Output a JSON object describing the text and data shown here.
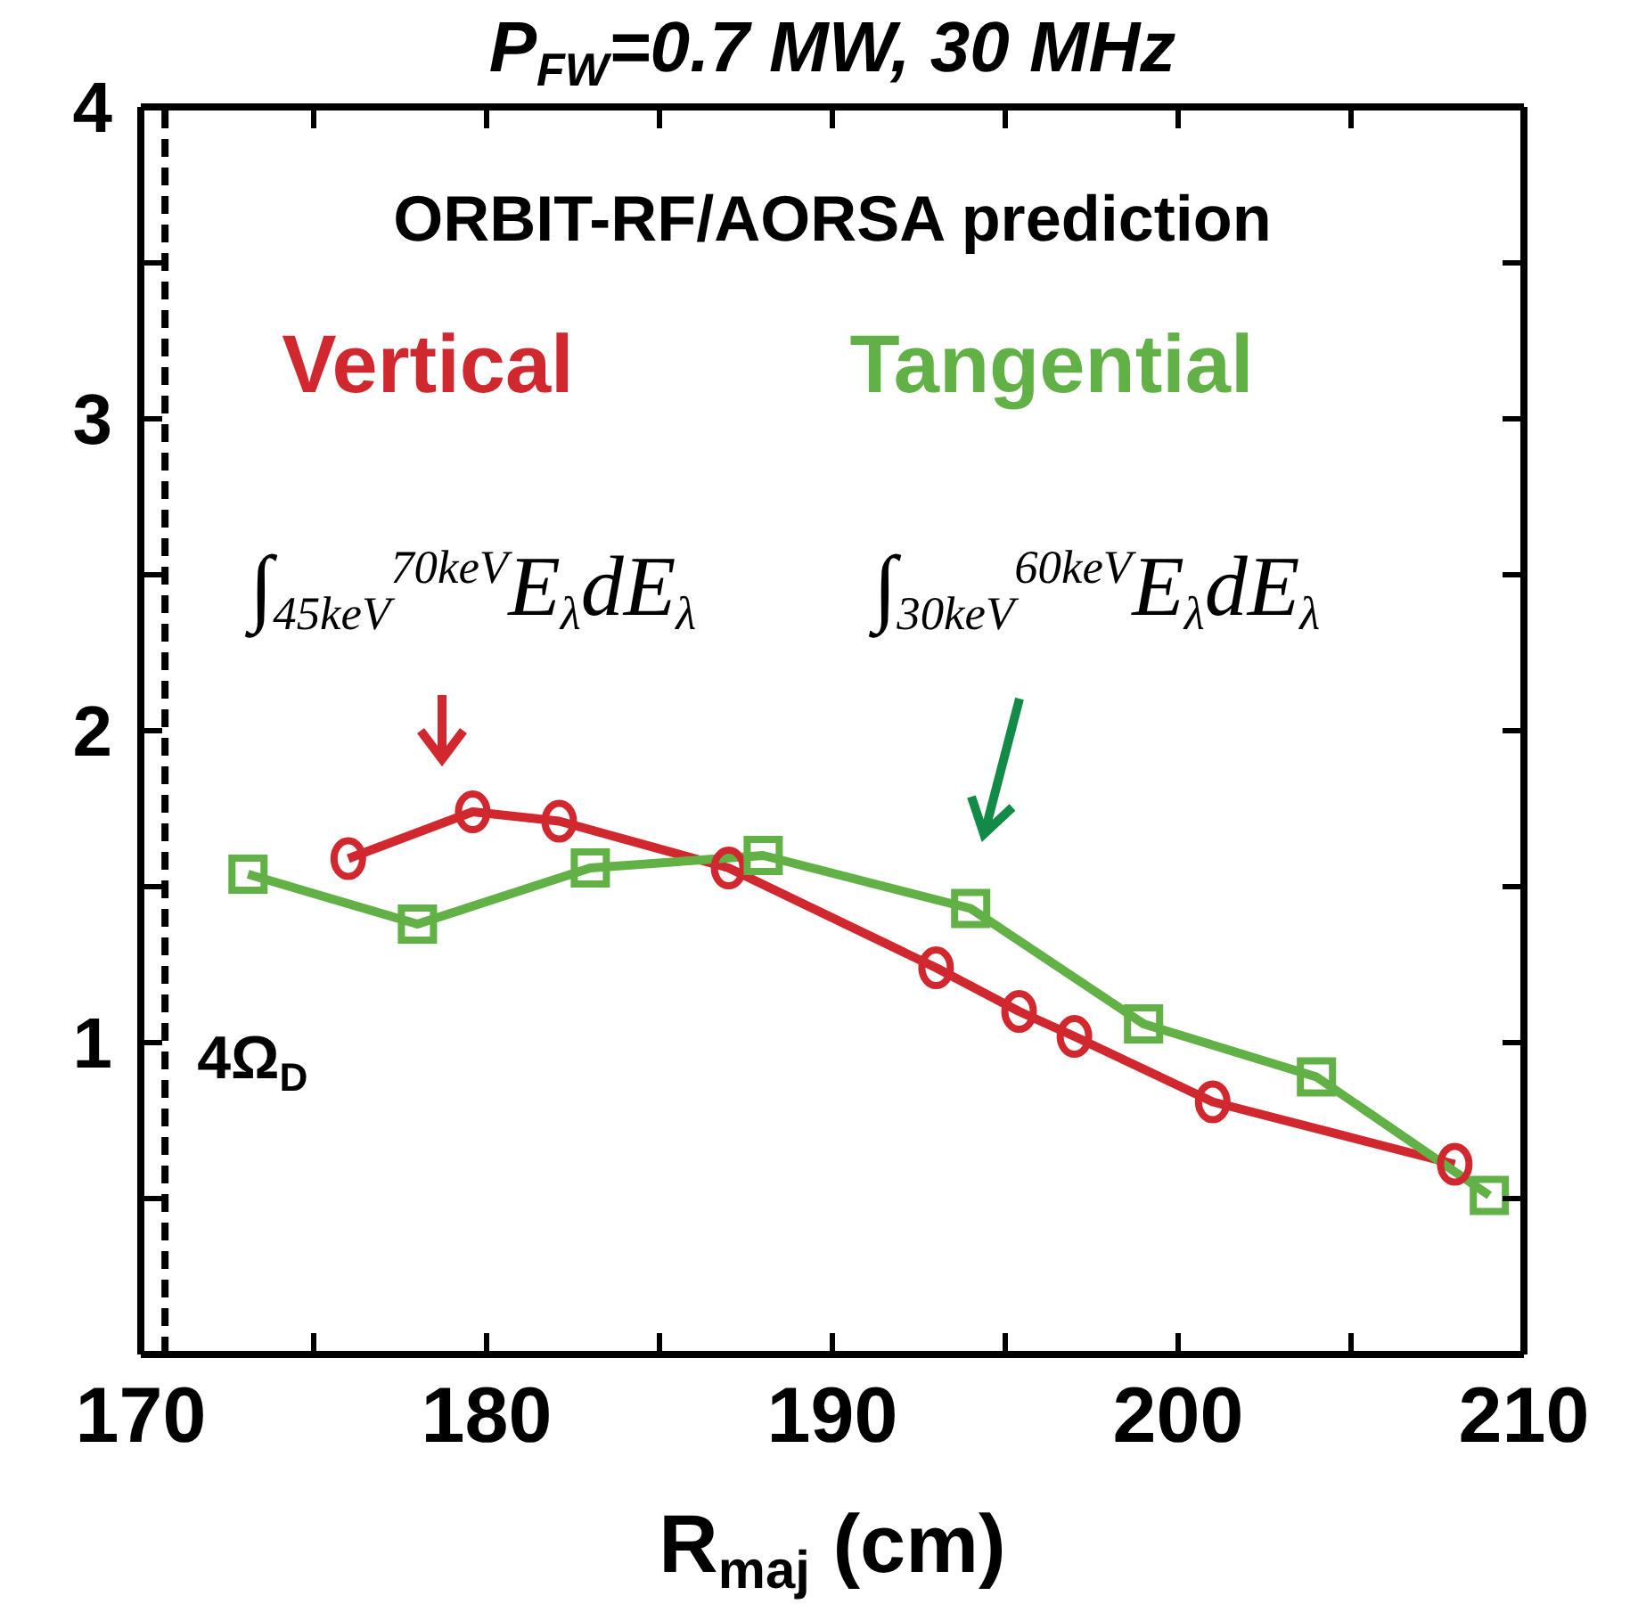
{
  "chart_data": {
    "type": "line",
    "title": "P$_{FW}$=0.7 MW, 30 MHz",
    "xlabel": "R$_{maj}$ (cm)",
    "xlim": [
      170,
      210
    ],
    "xticks": [
      170,
      {
        "value": 175,
        "label": null
      },
      180,
      {
        "value": 185,
        "label": null
      },
      190,
      {
        "value": 195,
        "label": null
      },
      200,
      {
        "value": 205,
        "label": null
      },
      210
    ],
    "ylim": [
      0,
      4
    ],
    "yticks": [
      {
        "value": 0,
        "label": null
      },
      {
        "value": 0.5,
        "label": null
      },
      1,
      {
        "value": 1.5,
        "label": null
      },
      2,
      {
        "value": 2.5,
        "label": null
      },
      3,
      {
        "value": 3.5,
        "label": null
      },
      4
    ],
    "series": [
      {
        "name": "Vertical",
        "color": "#d0282e",
        "marker": "circle",
        "x": [
          176,
          179.6,
          182.1,
          187,
          193,
          195.4,
          197,
          201,
          208
        ],
        "values": [
          1.59,
          1.74,
          1.71,
          1.56,
          1.24,
          1.1,
          1.02,
          0.81,
          0.61
        ]
      },
      {
        "name": "Tangential",
        "color": "#62b146",
        "marker": "square",
        "x": [
          173.1,
          178,
          183,
          188,
          194,
          199,
          204,
          209
        ],
        "values": [
          1.54,
          1.38,
          1.56,
          1.6,
          1.43,
          1.06,
          0.89,
          0.51
        ]
      }
    ],
    "ref_lines": [
      {
        "axis": "x",
        "value": 170.7,
        "label": "4Ω$_{D}$",
        "color": "#000000",
        "line_style": "dashed"
      }
    ],
    "annotations": [
      "ORBIT-RF/AORSA prediction",
      "∫$_{45keV}$$^{70keV}$E$_{λ}$dE$_{λ}$",
      "∫$_{30keV}$$^{60keV}$E$_{λ}$dE$_{λ}$"
    ]
  }
}
